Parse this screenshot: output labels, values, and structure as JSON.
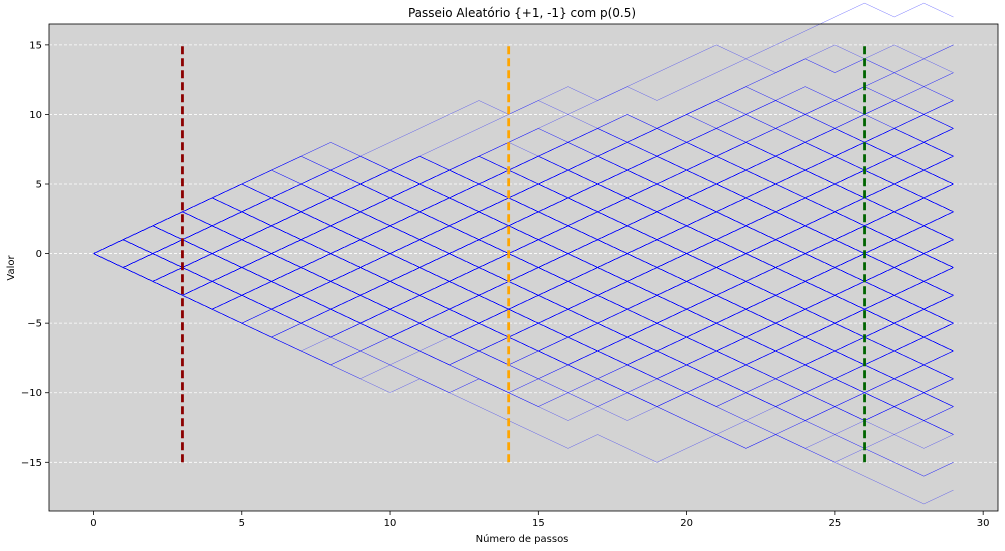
{
  "chart_data": {
    "type": "line",
    "title": "Passeio Aleatório {+1, -1} com p(0.5)",
    "xlabel": "Número de passos",
    "ylabel": "Valor",
    "xlim": [
      -1.5,
      30.5
    ],
    "ylim": [
      -18.5,
      16.5
    ],
    "xticks": [
      0,
      5,
      10,
      15,
      20,
      25,
      30
    ],
    "yticks": [
      -15,
      -10,
      -5,
      0,
      5,
      10,
      15
    ],
    "grid": "horizontal dashed",
    "background": "#d3d3d3",
    "walks": {
      "count": 500,
      "steps": 29,
      "start_value": 0,
      "step_values": [
        1,
        -1
      ],
      "probability": 0.5,
      "color": "#0000ff"
    },
    "vertical_lines": [
      {
        "x": 3,
        "y_range": [
          -15,
          15
        ],
        "color": "#8b0000"
      },
      {
        "x": 14,
        "y_range": [
          -15,
          15
        ],
        "color": "#ffa500"
      },
      {
        "x": 26,
        "y_range": [
          -15,
          15
        ],
        "color": "#006400"
      }
    ]
  }
}
